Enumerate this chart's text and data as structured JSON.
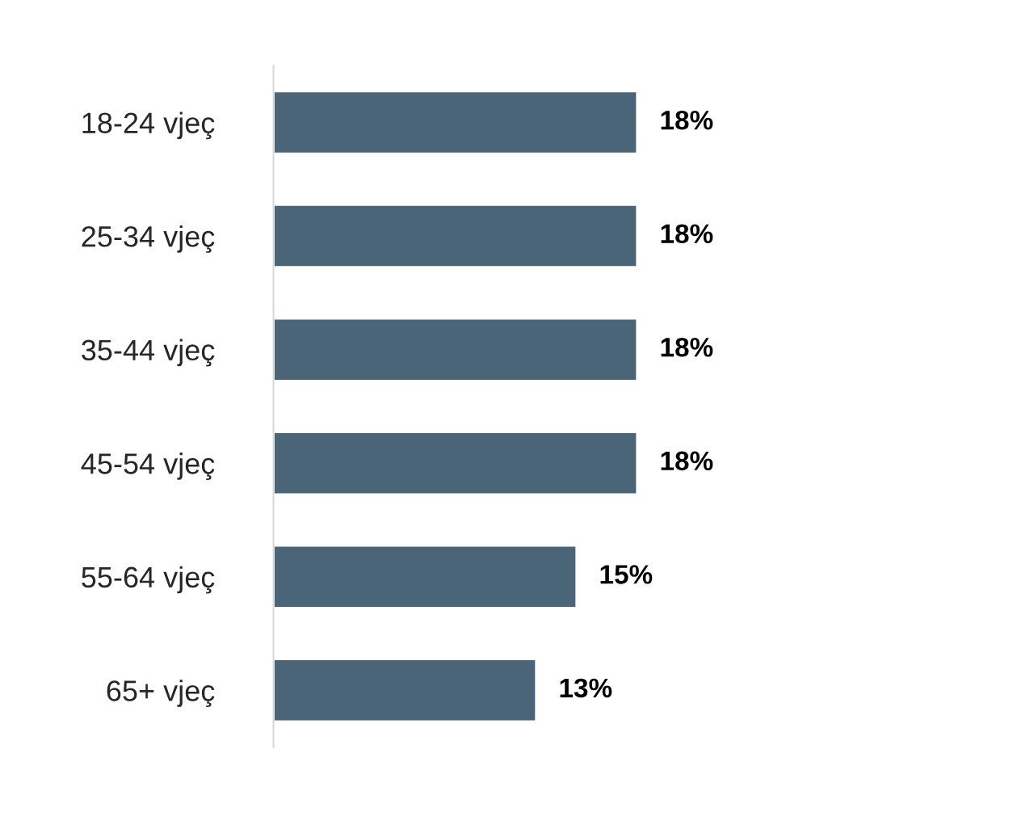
{
  "chart_data": {
    "type": "bar",
    "orientation": "horizontal",
    "categories": [
      "18-24 vjeç",
      "25-34 vjeç",
      "35-44 vjeç",
      "45-54 vjeç",
      "55-64 vjeç",
      "65+ vjeç"
    ],
    "values": [
      18,
      18,
      18,
      18,
      15,
      13
    ],
    "value_labels": [
      "18%",
      "18%",
      "18%",
      "18%",
      "15%",
      "13%"
    ],
    "color": "#4a6478",
    "grid": false,
    "legend": false
  }
}
